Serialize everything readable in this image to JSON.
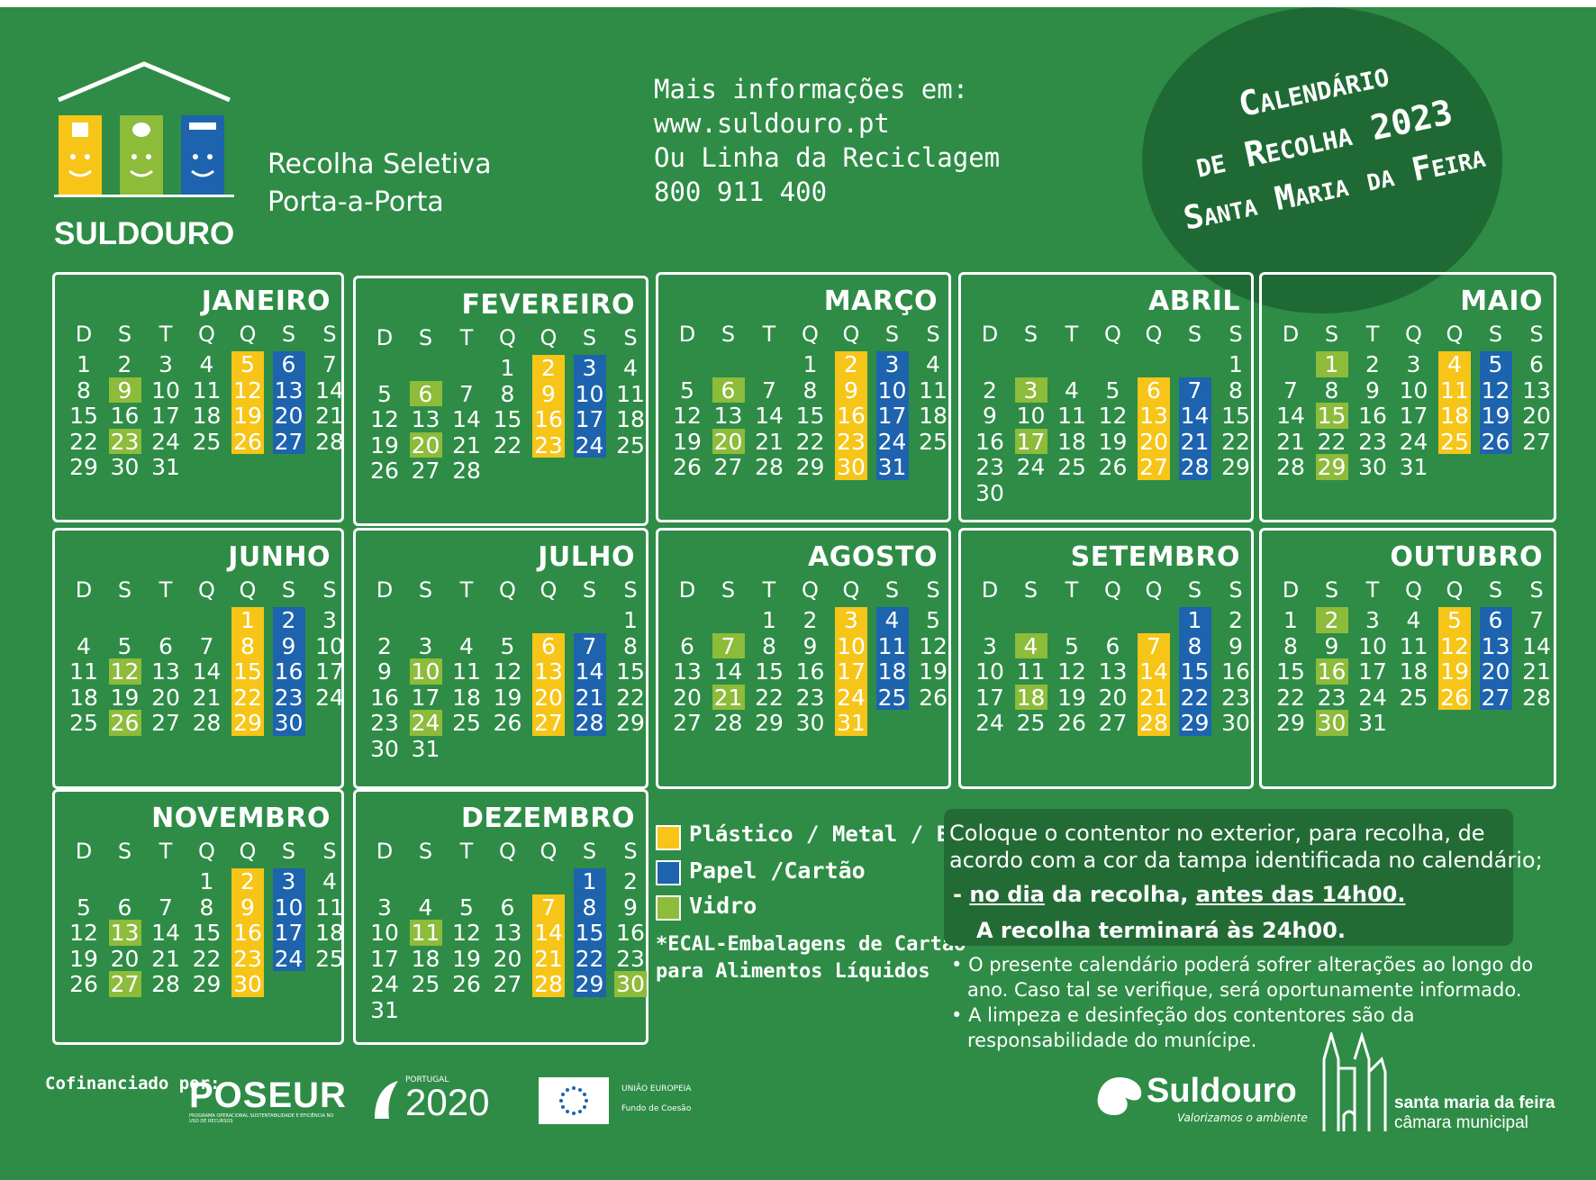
{
  "header": {
    "brand": "SULDOURO",
    "service_line1": "Recolha Seletiva",
    "service_line2": "Porta-a-Porta",
    "info_line1": "Mais informações em:",
    "info_line2": "www.suldouro.pt",
    "info_line3": "Ou Linha da Reciclagem",
    "info_line4": "800 911 400",
    "seal_line1": "Calendário",
    "seal_line2": "de Recolha 2023",
    "seal_line3": "Santa Maria da Feira"
  },
  "weekday_headers": [
    "D",
    "S",
    "T",
    "Q",
    "Q",
    "S",
    "S"
  ],
  "colors": {
    "background": "#2e8c46",
    "yellow": "#f6c517",
    "blue": "#1d63ae",
    "green": "#8dbb3a"
  },
  "months": [
    {
      "name": "JANEIRO",
      "start": 0,
      "days": 31,
      "yellow": [
        5,
        12,
        19,
        26
      ],
      "blue": [
        6,
        13,
        20,
        27
      ],
      "green": [
        9,
        23
      ]
    },
    {
      "name": "FEVEREIRO",
      "start": 3,
      "days": 28,
      "yellow": [
        2,
        9,
        16,
        23
      ],
      "blue": [
        3,
        10,
        17,
        24
      ],
      "green": [
        6,
        20
      ]
    },
    {
      "name": "MARÇO",
      "start": 3,
      "days": 31,
      "yellow": [
        2,
        9,
        16,
        23,
        30
      ],
      "blue": [
        3,
        10,
        17,
        24,
        31
      ],
      "green": [
        6,
        20
      ]
    },
    {
      "name": "ABRIL",
      "start": 6,
      "days": 30,
      "yellow": [
        6,
        13,
        20,
        27
      ],
      "blue": [
        7,
        14,
        21,
        28
      ],
      "green": [
        3,
        17
      ]
    },
    {
      "name": "MAIO",
      "start": 1,
      "days": 31,
      "yellow": [
        4,
        11,
        18,
        25
      ],
      "blue": [
        5,
        12,
        19,
        26
      ],
      "green": [
        1,
        15,
        29
      ]
    },
    {
      "name": "JUNHO",
      "start": 4,
      "days": 30,
      "yellow": [
        1,
        8,
        15,
        22,
        29
      ],
      "blue": [
        2,
        9,
        16,
        23,
        30
      ],
      "green": [
        12,
        26
      ]
    },
    {
      "name": "JULHO",
      "start": 6,
      "days": 31,
      "yellow": [
        6,
        13,
        20,
        27
      ],
      "blue": [
        7,
        14,
        21,
        28
      ],
      "green": [
        10,
        24
      ]
    },
    {
      "name": "AGOSTO",
      "start": 2,
      "days": 31,
      "yellow": [
        3,
        10,
        17,
        24,
        31
      ],
      "blue": [
        4,
        11,
        18,
        25
      ],
      "green": [
        7,
        21
      ]
    },
    {
      "name": "SETEMBRO",
      "start": 5,
      "days": 30,
      "yellow": [
        7,
        14,
        21,
        28
      ],
      "blue": [
        1,
        8,
        15,
        22,
        29
      ],
      "green": [
        4,
        18
      ]
    },
    {
      "name": "OUTUBRO",
      "start": 0,
      "days": 31,
      "yellow": [
        5,
        12,
        19,
        26
      ],
      "blue": [
        6,
        13,
        20,
        27
      ],
      "green": [
        2,
        16,
        30
      ]
    },
    {
      "name": "NOVEMBRO",
      "start": 3,
      "days": 30,
      "yellow": [
        2,
        9,
        16,
        23,
        30
      ],
      "blue": [
        3,
        10,
        17,
        24
      ],
      "green": [
        13,
        27
      ]
    },
    {
      "name": "DEZEMBRO",
      "start": 5,
      "days": 31,
      "yellow": [
        7,
        14,
        21,
        28
      ],
      "blue": [
        1,
        8,
        15,
        22,
        29
      ],
      "green": [
        11,
        30
      ]
    }
  ],
  "legend": {
    "yellow_label": "Plástico / Metal / ECAL*",
    "blue_label": "Papel /Cartão",
    "green_label": "Vidro",
    "footnote_line1": "*ECAL-Embalagens de Cartão",
    "footnote_line2": "para Alimentos Líquidos"
  },
  "notice": {
    "line1": "Coloque o contentor no exterior, para recolha, de",
    "line2": "acordo com a cor da tampa identificada no calendário;",
    "dash": "-",
    "day_phrase": "no dia",
    "middle_phrase": "da recolha,",
    "time_phrase": "antes das 14h00.",
    "line4": "A recolha terminará às 24h00.",
    "bullet1_line1": "O presente calendário poderá sofrer alterações ao longo do",
    "bullet1_line2": "ano. Caso tal se verifique, será oportunamente informado.",
    "bullet2_line1": "A limpeza e desinfeção dos contentores são da",
    "bullet2_line2": "responsabilidade do munícipe."
  },
  "footer": {
    "cofinanced": "Cofinanciado por:",
    "poseur": "POSEUR",
    "poseur_sub": "PROGRAMA OPERACIONAL SUSTENTABILIDADE E EFICIÊNCIA NO USO DE RECURSOS",
    "portugal": "PORTUGAL",
    "p2020": "2020",
    "eu_line1": "UNIÃO EUROPEIA",
    "eu_line2": "Fundo de Coesão",
    "suldouro": "Suldouro",
    "suldouro_tag": "Valorizamos o ambiente",
    "smf_line1": "santa maria da feira",
    "smf_line2": "câmara municipal"
  }
}
